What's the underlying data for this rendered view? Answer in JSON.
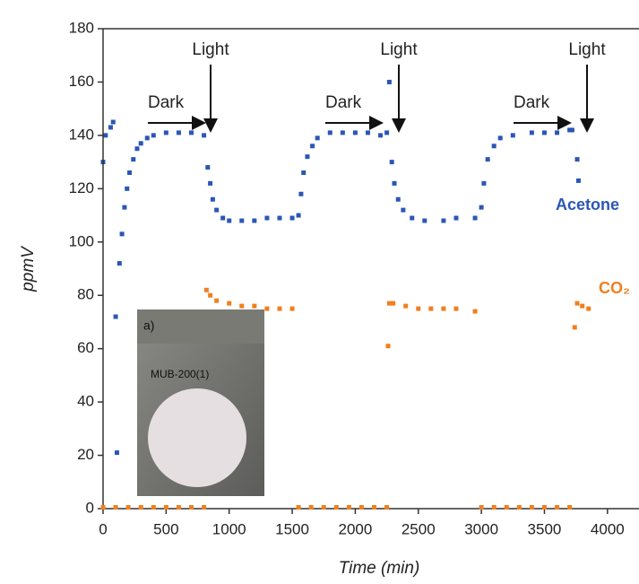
{
  "chart_data": {
    "type": "scatter",
    "x_label": "Time (min)",
    "y_label": "ppmV",
    "xlim": [
      0,
      4250
    ],
    "ylim": [
      0,
      180
    ],
    "xticks": [
      0,
      500,
      1000,
      1500,
      2000,
      2500,
      3000,
      3500,
      4000
    ],
    "yticks": [
      0,
      20,
      40,
      60,
      80,
      100,
      120,
      140,
      160,
      180
    ],
    "light_labels": [
      "Light",
      "Light",
      "Light"
    ],
    "dark_labels": [
      "Dark",
      "Dark",
      "Dark"
    ],
    "inset_labels": [
      "a)",
      "MUB-200(1)"
    ],
    "series": [
      {
        "name": "Acetone",
        "color": "#2b56b5",
        "x": [
          0,
          20,
          60,
          80,
          100,
          110,
          130,
          150,
          170,
          190,
          210,
          240,
          270,
          300,
          350,
          400,
          500,
          600,
          700,
          800,
          830,
          850,
          870,
          900,
          950,
          1000,
          1100,
          1200,
          1300,
          1400,
          1500,
          1550,
          1570,
          1590,
          1620,
          1660,
          1700,
          1800,
          1900,
          2000,
          2100,
          2200,
          2250,
          2270,
          2290,
          2310,
          2340,
          2380,
          2450,
          2550,
          2700,
          2800,
          2950,
          3000,
          3020,
          3050,
          3100,
          3150,
          3250,
          3400,
          3500,
          3600,
          3700,
          3720,
          3760,
          3770
        ],
        "y": [
          130,
          140,
          143,
          145,
          72,
          21,
          92,
          103,
          113,
          120,
          126,
          131,
          135,
          137,
          139,
          140,
          141,
          141,
          141,
          140,
          128,
          122,
          116,
          112,
          109,
          108,
          108,
          108,
          109,
          109,
          109,
          110,
          118,
          126,
          132,
          136,
          139,
          141,
          141,
          141,
          141,
          140,
          141,
          160,
          130,
          122,
          116,
          112,
          109,
          108,
          108,
          109,
          109,
          113,
          122,
          131,
          136,
          139,
          140,
          141,
          141,
          141,
          142,
          142,
          131,
          123
        ]
      },
      {
        "name": "CO₂",
        "color": "#f07f1e",
        "x": [
          0,
          100,
          200,
          300,
          400,
          500,
          600,
          700,
          800,
          820,
          850,
          900,
          1000,
          1100,
          1200,
          1300,
          1400,
          1500,
          1550,
          1650,
          1750,
          1850,
          1950,
          2050,
          2150,
          2250,
          2260,
          2270,
          2300,
          2400,
          2500,
          2600,
          2700,
          2800,
          2950,
          3000,
          3100,
          3200,
          3300,
          3400,
          3500,
          3600,
          3700,
          3740,
          3760,
          3800,
          3850
        ],
        "y": [
          0.5,
          0.5,
          0.5,
          0.5,
          0.5,
          0.5,
          0.5,
          0.5,
          0.5,
          82,
          80,
          78,
          77,
          76,
          76,
          75,
          75,
          75,
          0.5,
          0.5,
          0.5,
          0.5,
          0.5,
          0.5,
          0.5,
          0.5,
          61,
          77,
          77,
          76,
          75,
          75,
          75,
          75,
          74,
          0.5,
          0.5,
          0.5,
          0.5,
          0.5,
          0.5,
          0.5,
          0.5,
          68,
          77,
          76,
          75
        ]
      }
    ]
  }
}
